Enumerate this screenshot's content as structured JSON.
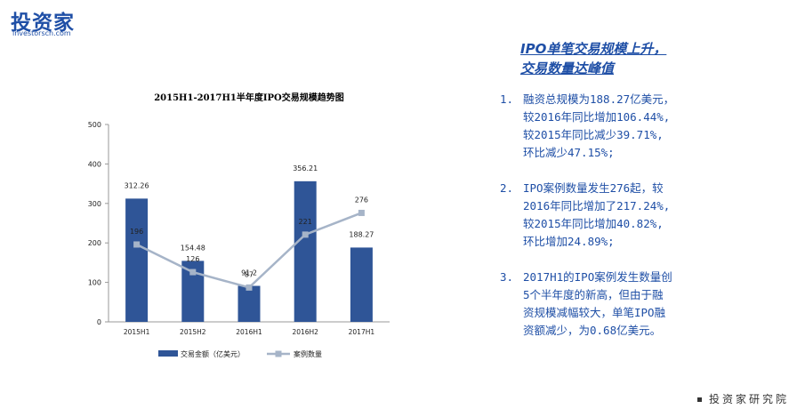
{
  "logo": {
    "main": "投资家",
    "sub": "investorscn.com"
  },
  "panel": {
    "title_lines": [
      "IPO单笔交易规模上升，",
      "交易数量达峰值"
    ],
    "points": [
      {
        "num": "1.",
        "lines": [
          "融资总规模为188.27亿美元，",
          "较2016年同比增加106.44%,",
          "较2015年同比减少39.71%,",
          "环比减少47.15%;"
        ]
      },
      {
        "num": "2.",
        "lines": [
          "IPO案例数量发生276起，较",
          "2016年同比增加了217.24%,",
          "较2015年同比增加40.82%,",
          "环比增加24.89%;"
        ]
      },
      {
        "num": "3.",
        "lines": [
          "2017H1的IPO案例发生数量创",
          "5个半年度的新高，但由于融",
          "资规模减幅较大，单笔IPO融",
          "资额减少，为0.68亿美元。"
        ]
      }
    ]
  },
  "footer": "投资家研究院",
  "chart_data": {
    "type": "bar",
    "title": "2015H1-2017H1半年度IPO交易规模趋势图",
    "categories": [
      "2015H1",
      "2015H2",
      "2016H1",
      "2016H2",
      "2017H1"
    ],
    "ylim": [
      0,
      500
    ],
    "yticks": [
      "0",
      "100",
      "200",
      "300",
      "400",
      "500"
    ],
    "grid": false,
    "legend_position": "bottom",
    "series": [
      {
        "name": "交易金额（亿美元）",
        "kind": "bar",
        "color": "#2f5597",
        "values": [
          312.26,
          154.48,
          91.2,
          356.21,
          188.27
        ],
        "labels": [
          "312.26",
          "154.48",
          "91.2",
          "356.21",
          "188.27"
        ]
      },
      {
        "name": "案例数量",
        "kind": "line",
        "color": "#a6b4c8",
        "values": [
          196,
          126,
          87,
          221,
          276
        ],
        "labels": [
          "196",
          "126",
          "87",
          "221",
          "276"
        ]
      }
    ]
  }
}
